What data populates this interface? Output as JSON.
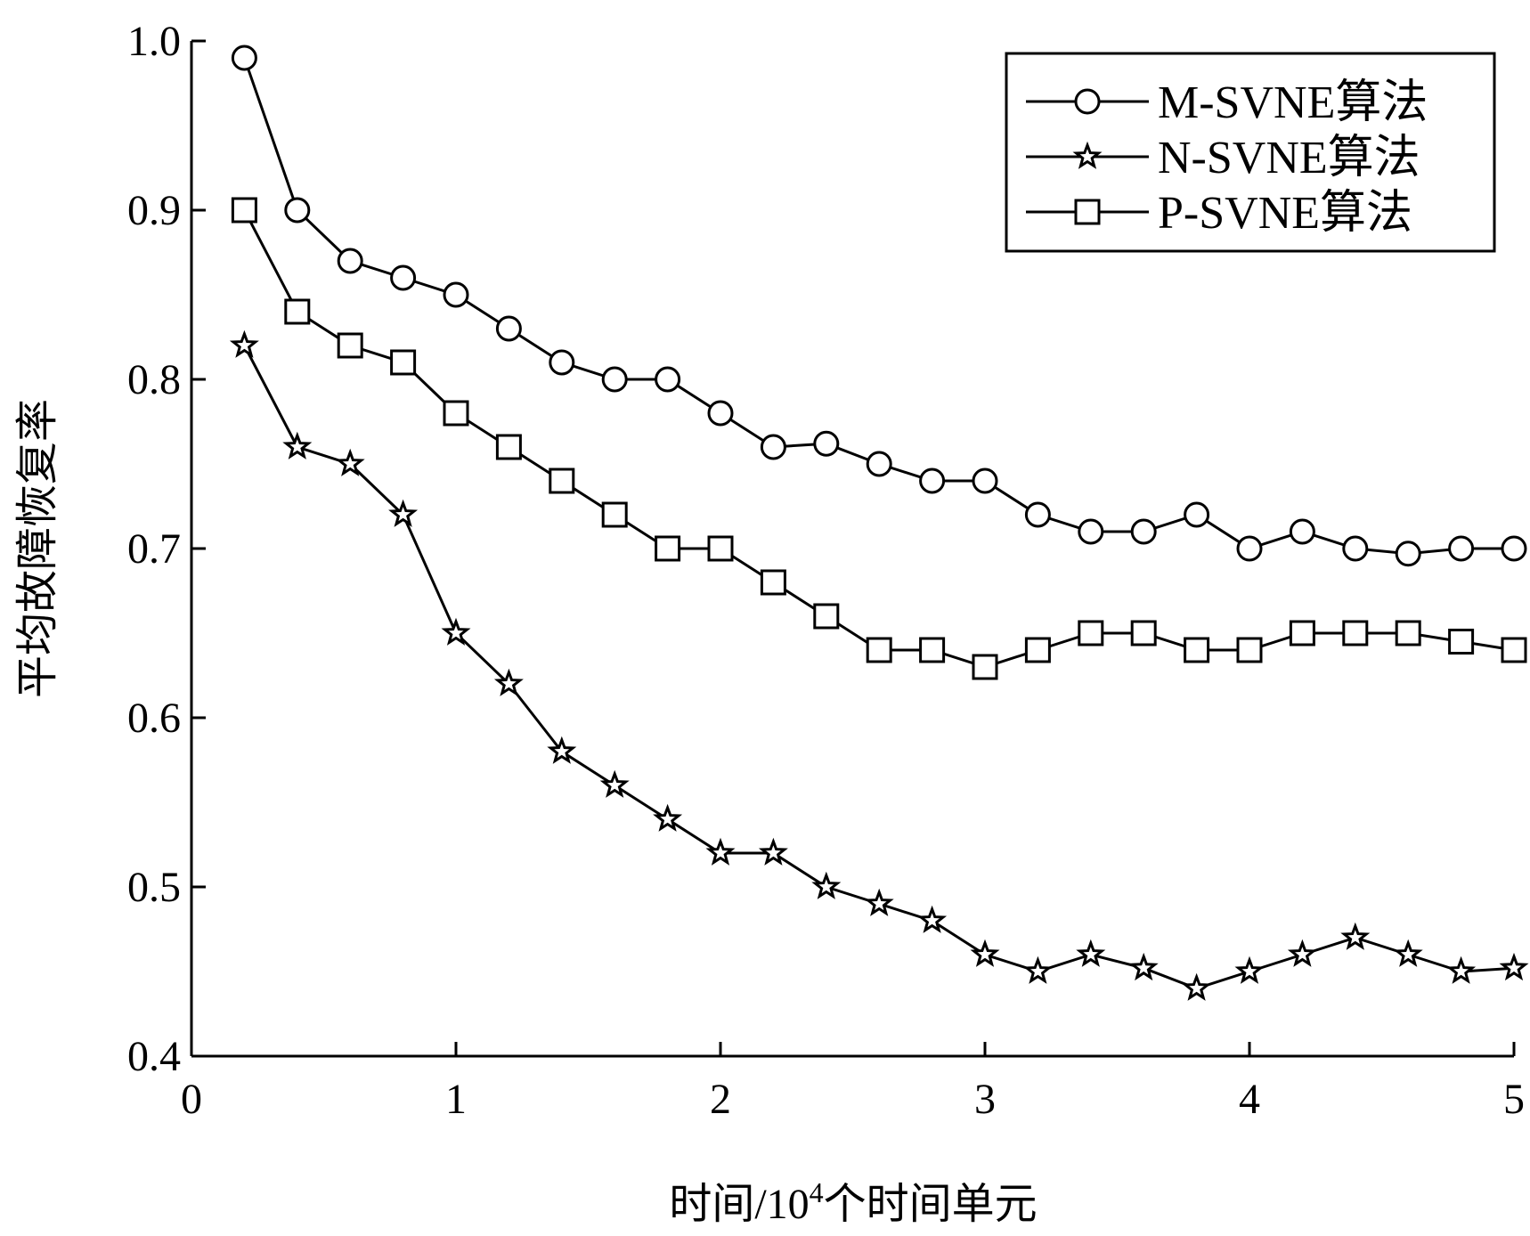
{
  "chart_data": {
    "type": "line",
    "title": "",
    "xlabel": "时间/10",
    "xlabel_sup": "4",
    "xlabel_suffix": "个时间单元",
    "ylabel": "平均故障恢复率",
    "xlim": [
      0,
      5
    ],
    "ylim": [
      0.4,
      1.0
    ],
    "x_ticks": [
      "0",
      "1",
      "2",
      "3",
      "4",
      "5"
    ],
    "y_ticks": [
      "0.4",
      "0.5",
      "0.6",
      "0.7",
      "0.8",
      "0.9",
      "1.0"
    ],
    "grid": false,
    "legend_position": "top-right",
    "x": [
      0.2,
      0.4,
      0.6,
      0.8,
      1.0,
      1.2,
      1.4,
      1.6,
      1.8,
      2.0,
      2.2,
      2.4,
      2.6,
      2.8,
      3.0,
      3.2,
      3.4,
      3.6,
      3.8,
      4.0,
      4.2,
      4.4,
      4.6,
      4.8,
      5.0
    ],
    "series": [
      {
        "name": "M-SVNE算法",
        "marker": "circle",
        "values": [
          0.99,
          0.9,
          0.87,
          0.86,
          0.85,
          0.83,
          0.81,
          0.8,
          0.8,
          0.78,
          0.76,
          0.762,
          0.75,
          0.74,
          0.74,
          0.72,
          0.71,
          0.71,
          0.72,
          0.7,
          0.71,
          0.7,
          0.697,
          0.7,
          0.7
        ]
      },
      {
        "name": "N-SVNE算法",
        "marker": "star",
        "values": [
          0.82,
          0.76,
          0.75,
          0.72,
          0.65,
          0.62,
          0.58,
          0.56,
          0.54,
          0.52,
          0.52,
          0.5,
          0.49,
          0.48,
          0.46,
          0.45,
          0.46,
          0.452,
          0.44,
          0.45,
          0.46,
          0.47,
          0.46,
          0.45,
          0.452
        ]
      },
      {
        "name": "P-SVNE算法",
        "marker": "square",
        "values": [
          0.9,
          0.84,
          0.82,
          0.81,
          0.78,
          0.76,
          0.74,
          0.72,
          0.7,
          0.7,
          0.68,
          0.66,
          0.64,
          0.64,
          0.63,
          0.64,
          0.65,
          0.65,
          0.64,
          0.64,
          0.65,
          0.65,
          0.65,
          0.645,
          0.64
        ]
      }
    ],
    "colors": {
      "line": "#000000",
      "background": "#ffffff"
    }
  }
}
